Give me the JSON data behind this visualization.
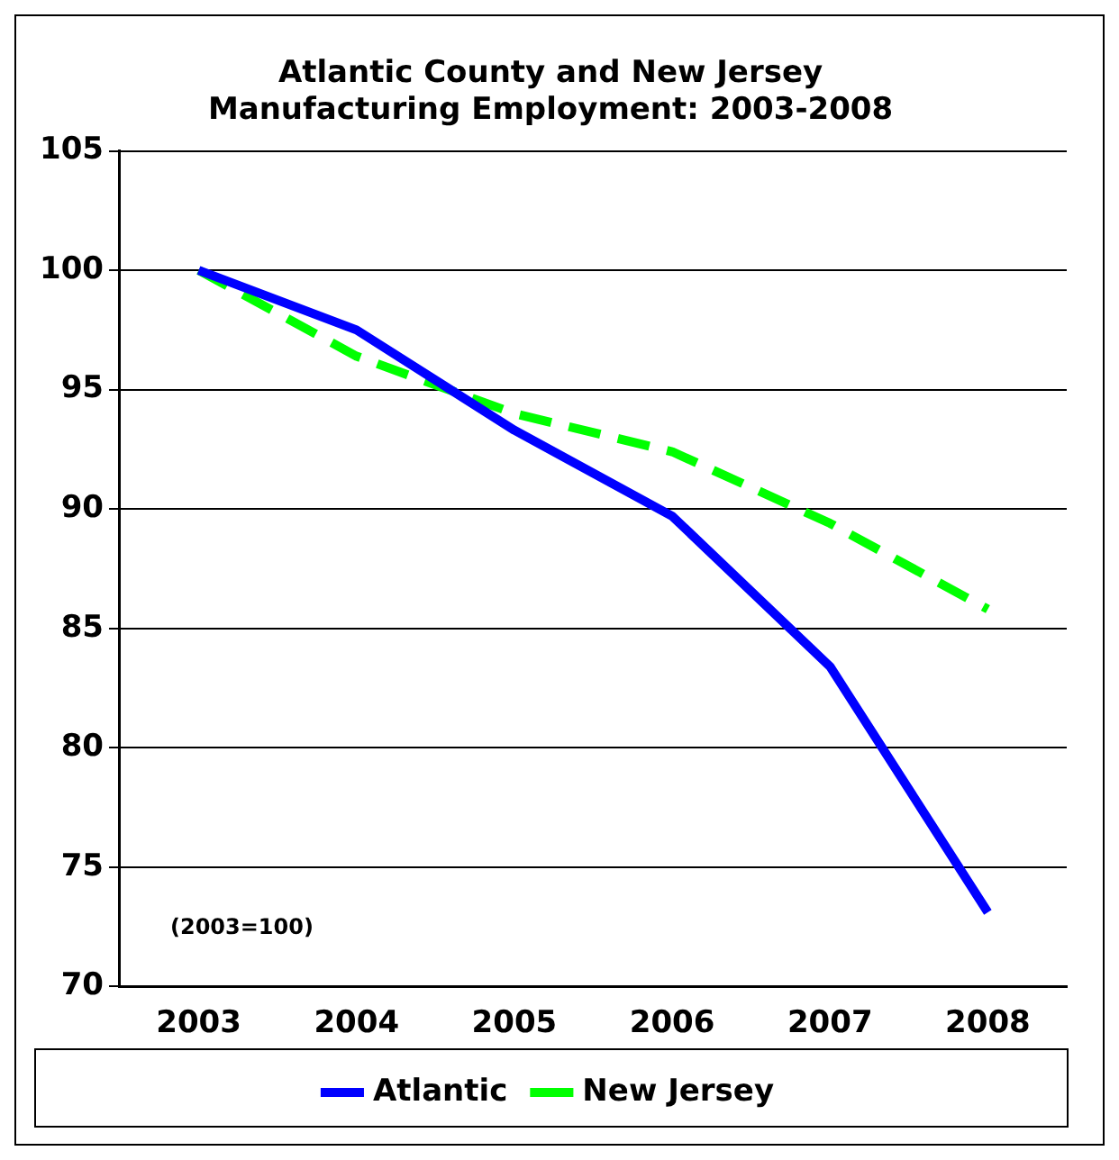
{
  "chart_data": {
    "type": "line",
    "title": "Atlantic County and New Jersey\nManufacturing Employment: 2003-2008",
    "categories": [
      "2003",
      "2004",
      "2005",
      "2006",
      "2007",
      "2008"
    ],
    "series": [
      {
        "name": "Atlantic",
        "color": "#0000ff",
        "line_style": "solid",
        "values": [
          100,
          97.5,
          93.3,
          89.7,
          83.4,
          73.1
        ]
      },
      {
        "name": "New Jersey",
        "color": "#00ff00",
        "line_style": "dashed",
        "values": [
          100,
          96.4,
          94.0,
          92.4,
          89.4,
          85.8
        ]
      }
    ],
    "ylim": [
      70,
      105
    ],
    "yticks": [
      70,
      75,
      80,
      85,
      90,
      95,
      100,
      105
    ],
    "grid": "y",
    "legend": "bottom",
    "marker": "none",
    "annotations": [
      "(2003=100)"
    ]
  }
}
